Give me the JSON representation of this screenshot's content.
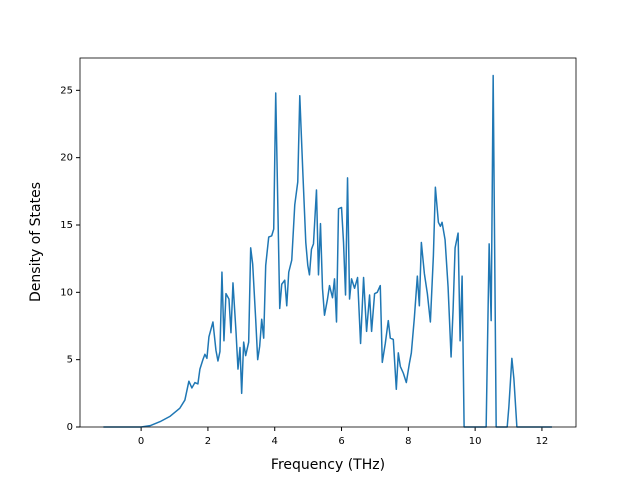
{
  "chart_data": {
    "type": "line",
    "xlabel": "Frequency (THz)",
    "ylabel": "Density of States",
    "x": [
      -1.13,
      0,
      0.27,
      0.57,
      0.87,
      1.16,
      1.31,
      1.43,
      1.52,
      1.61,
      1.7,
      1.76,
      1.85,
      1.91,
      1.97,
      2.03,
      2.15,
      2.24,
      2.3,
      2.36,
      2.42,
      2.48,
      2.54,
      2.63,
      2.69,
      2.75,
      2.84,
      2.9,
      2.96,
      3.01,
      3.07,
      3.13,
      3.22,
      3.28,
      3.34,
      3.43,
      3.49,
      3.55,
      3.61,
      3.67,
      3.73,
      3.82,
      3.91,
      3.97,
      4.03,
      4.15,
      4.21,
      4.3,
      4.36,
      4.42,
      4.51,
      4.6,
      4.69,
      4.75,
      4.84,
      4.93,
      4.99,
      5.04,
      5.1,
      5.16,
      5.25,
      5.31,
      5.37,
      5.43,
      5.49,
      5.58,
      5.64,
      5.73,
      5.79,
      5.85,
      5.91,
      6.0,
      6.06,
      6.12,
      6.18,
      6.24,
      6.3,
      6.39,
      6.48,
      6.57,
      6.66,
      6.75,
      6.84,
      6.9,
      6.99,
      7.07,
      7.16,
      7.22,
      7.31,
      7.4,
      7.46,
      7.55,
      7.64,
      7.7,
      7.76,
      7.85,
      7.94,
      8.03,
      8.09,
      8.18,
      8.27,
      8.33,
      8.39,
      8.48,
      8.57,
      8.66,
      8.75,
      8.81,
      8.9,
      8.96,
      9.01,
      9.1,
      9.19,
      9.28,
      9.34,
      9.4,
      9.49,
      9.55,
      9.61,
      9.67,
      10.33,
      10.42,
      10.48,
      10.54,
      10.63,
      10.96,
      11.01,
      11.1,
      11.16,
      11.25,
      12.3
    ],
    "series": [
      {
        "color": "#1f77b4",
        "values": [
          0,
          0,
          0.1,
          0.4,
          0.8,
          1.4,
          2.0,
          3.4,
          2.9,
          3.3,
          3.2,
          4.3,
          5.0,
          5.4,
          5.1,
          6.7,
          7.8,
          5.7,
          4.9,
          5.6,
          11.5,
          6.4,
          9.9,
          9.5,
          7.0,
          10.7,
          7.1,
          4.3,
          5.9,
          2.5,
          6.3,
          5.3,
          6.3,
          13.3,
          12.1,
          8.0,
          5.0,
          6.0,
          8.0,
          6.6,
          12.0,
          14.1,
          14.2,
          14.7,
          24.8,
          8.8,
          10.6,
          10.9,
          9.0,
          11.5,
          12.4,
          16.5,
          18.2,
          24.6,
          19.0,
          13.7,
          12.0,
          11.3,
          13.2,
          13.6,
          17.6,
          11.3,
          15.1,
          10.3,
          8.3,
          9.5,
          10.5,
          9.6,
          11.0,
          7.8,
          16.2,
          16.3,
          13.7,
          9.8,
          18.5,
          9.5,
          11.0,
          10.3,
          11.1,
          6.2,
          11.1,
          7.1,
          9.8,
          7.1,
          9.9,
          10.0,
          10.5,
          4.8,
          6.2,
          7.9,
          6.6,
          6.5,
          2.8,
          5.5,
          4.5,
          4.0,
          3.3,
          4.7,
          5.5,
          8.1,
          11.2,
          9.0,
          13.7,
          11.4,
          9.9,
          7.8,
          12.7,
          17.8,
          15.2,
          14.9,
          15.2,
          13.9,
          10.4,
          5.2,
          8.7,
          13.3,
          14.4,
          6.4,
          11.2,
          0,
          0,
          13.6,
          7.9,
          26.1,
          0,
          0,
          1.5,
          5.1,
          3.6,
          0,
          0
        ]
      }
    ],
    "xlim": [
      -1.83,
      13.02
    ],
    "ylim": [
      0,
      27.4
    ],
    "xticks": [
      0,
      2,
      4,
      6,
      8,
      10,
      12
    ],
    "yticks": [
      0,
      5,
      10,
      15,
      20,
      25
    ]
  }
}
